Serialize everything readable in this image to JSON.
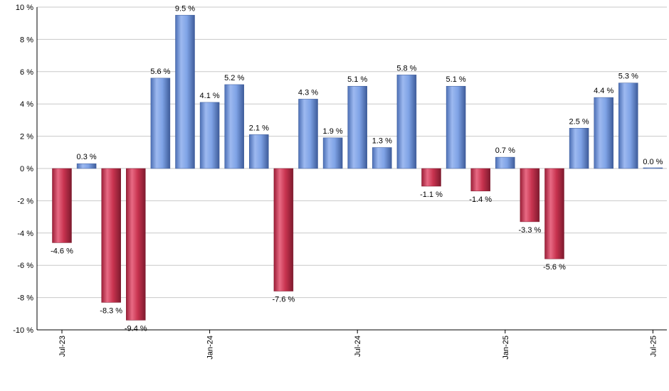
{
  "chart_data": {
    "type": "bar",
    "title": "",
    "xlabel": "",
    "ylabel": "",
    "ylim": [
      -10,
      10
    ],
    "y_ticks": [
      10,
      8,
      6,
      4,
      2,
      0,
      -2,
      -4,
      -6,
      -8,
      -10
    ],
    "y_tick_labels": [
      "10 %",
      "8 %",
      "6 %",
      "4 %",
      "2 %",
      "0 %",
      "-2 %",
      "-4 %",
      "-6 %",
      "-8 %",
      "-10 %"
    ],
    "x_tick_labels": [
      {
        "label": "Jul-23",
        "index": 0
      },
      {
        "label": "Jan-24",
        "index": 6
      },
      {
        "label": "Jul-24",
        "index": 12
      },
      {
        "label": "Jan-25",
        "index": 18
      },
      {
        "label": "Jul-25",
        "index": 24
      }
    ],
    "grid": true,
    "positive_color": "#7FA3E6",
    "negative_color": "#C8334F",
    "categories": [
      "Jul-23",
      "Aug-23",
      "Sep-23",
      "Oct-23",
      "Nov-23",
      "Dec-23",
      "Jan-24",
      "Feb-24",
      "Mar-24",
      "Apr-24",
      "May-24",
      "Jun-24",
      "Jul-24",
      "Aug-24",
      "Sep-24",
      "Oct-24",
      "Nov-24",
      "Dec-24",
      "Jan-25",
      "Feb-25",
      "Mar-25",
      "Apr-25",
      "May-25",
      "Jun-25",
      "Jul-25"
    ],
    "values": [
      -4.6,
      0.3,
      -8.3,
      -9.4,
      5.6,
      9.5,
      4.1,
      5.2,
      2.1,
      -7.6,
      4.3,
      1.9,
      5.1,
      1.3,
      5.8,
      -1.1,
      5.1,
      -1.4,
      0.7,
      -3.3,
      -5.6,
      2.5,
      4.4,
      5.3,
      0.0
    ],
    "value_labels": [
      "-4.6 %",
      "0.3 %",
      "-8.3 %",
      "-9.4 %",
      "5.6 %",
      "9.5 %",
      "4.1 %",
      "5.2 %",
      "2.1 %",
      "-7.6 %",
      "4.3 %",
      "1.9 %",
      "5.1 %",
      "1.3 %",
      "5.8 %",
      "-1.1 %",
      "5.1 %",
      "-1.4 %",
      "0.7 %",
      "-3.3 %",
      "-5.6 %",
      "2.5 %",
      "4.4 %",
      "5.3 %",
      "0.0 %"
    ]
  }
}
